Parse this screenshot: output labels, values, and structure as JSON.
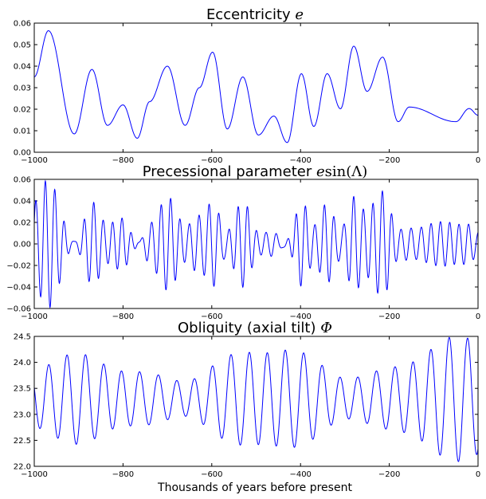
{
  "chart_data": [
    {
      "type": "line",
      "title_text": "Eccentricity",
      "title_math": "e",
      "x_ticks": [
        -1000,
        -800,
        -600,
        -400,
        -200,
        0
      ],
      "x_tick_labels": [
        "−1000",
        "−800",
        "−600",
        "−400",
        "−200",
        "0"
      ],
      "y_ticks": [
        0.0,
        0.01,
        0.02,
        0.03,
        0.04,
        0.05,
        0.06
      ],
      "y_tick_labels": [
        "0.00",
        "0.01",
        "0.02",
        "0.03",
        "0.04",
        "0.05",
        "0.06"
      ],
      "xlim": [
        -1000,
        0
      ],
      "ylim": [
        0,
        0.06
      ],
      "color": "#0000ff",
      "extrema": {
        "x": [
          -1000,
          -968,
          -910,
          -870,
          -835,
          -800,
          -768,
          -740,
          -700,
          -660,
          -628,
          -598,
          -565,
          -530,
          -495,
          -460,
          -430,
          -398,
          -370,
          -340,
          -310,
          -280,
          -250,
          -215,
          -180,
          -155,
          -120,
          -90,
          -50,
          -20,
          0
        ],
        "y": [
          0.035,
          0.0565,
          0.0085,
          0.0385,
          0.0125,
          0.022,
          0.0065,
          0.0235,
          0.04,
          0.0125,
          0.03,
          0.0465,
          0.0108,
          0.035,
          0.008,
          0.0168,
          0.0045,
          0.0365,
          0.012,
          0.0365,
          0.0202,
          0.0493,
          0.0283,
          0.0442,
          0.0142,
          0.021,
          0.0172,
          0.0172,
          0.0172,
          0.0172,
          0.0172
        ]
      }
    },
    {
      "type": "line",
      "title_text": "Precessional parameter",
      "title_math": "e",
      "title_fn": "sin",
      "title_arg": "(Λ)",
      "x_ticks": [
        -1000,
        -800,
        -600,
        -400,
        -200,
        0
      ],
      "x_tick_labels": [
        "−1000",
        "−800",
        "−600",
        "−400",
        "−200",
        "0"
      ],
      "y_ticks": [
        -0.06,
        -0.04,
        -0.02,
        0.0,
        0.02,
        0.04,
        0.06
      ],
      "y_tick_labels": [
        "−0.06",
        "−0.04",
        "−0.02",
        "0.00",
        "0.02",
        "0.04",
        "0.06"
      ],
      "xlim": [
        -1000,
        0
      ],
      "ylim": [
        -0.06,
        0.06
      ],
      "color": "#0000ff",
      "period_kyr": 21.7
    },
    {
      "type": "line",
      "title_text": "Obliquity (axial tilt)",
      "title_math": "Φ",
      "xlabel": "Thousands of years before present",
      "x_ticks": [
        -1000,
        -800,
        -600,
        -400,
        -200,
        0
      ],
      "x_tick_labels": [
        "−1000",
        "−800",
        "−600",
        "−400",
        "−200",
        "0"
      ],
      "y_ticks": [
        22.0,
        22.5,
        23.0,
        23.5,
        24.0,
        24.5
      ],
      "y_tick_labels": [
        "22.0",
        "22.5",
        "23.0",
        "23.5",
        "24.0",
        "24.5"
      ],
      "xlim": [
        -1000,
        0
      ],
      "ylim": [
        22.0,
        24.5
      ],
      "color": "#0000ff",
      "period_kyr": 41,
      "mean": 23.3
    }
  ]
}
